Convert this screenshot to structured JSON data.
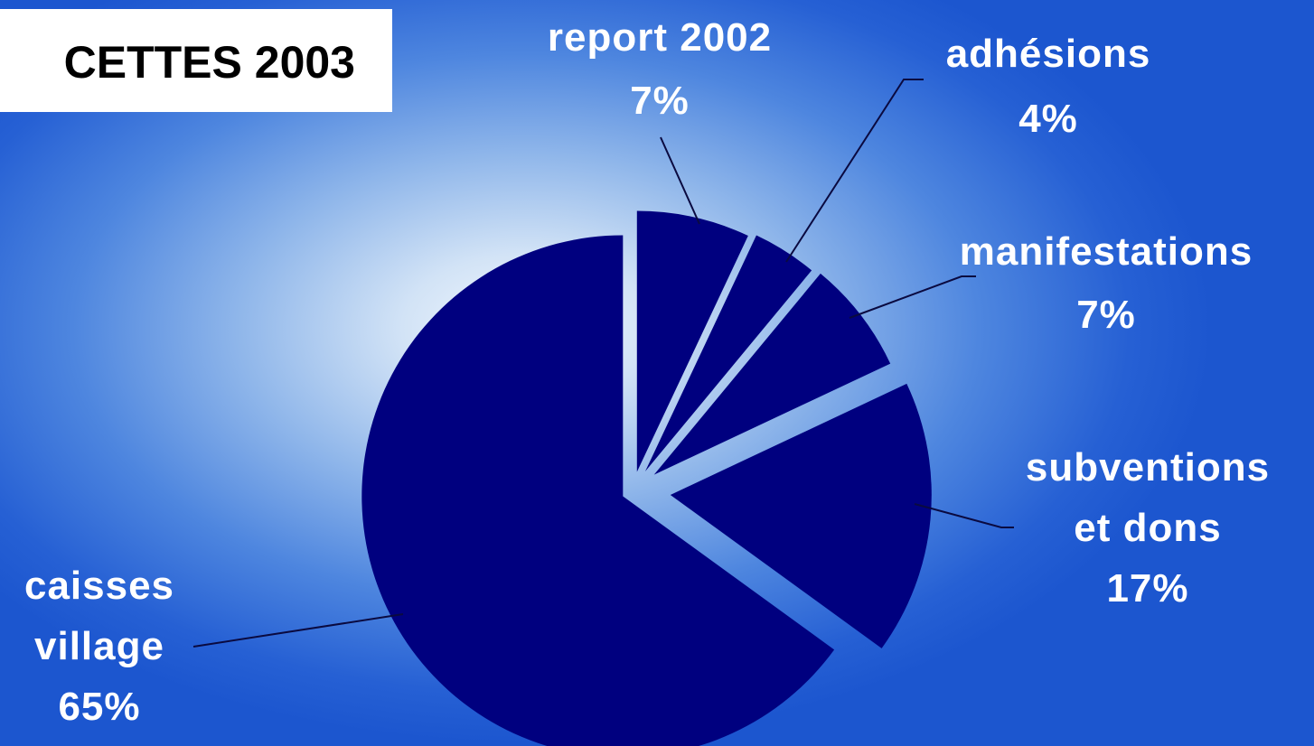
{
  "colors": {
    "slice_fill": "#00007f",
    "label_text": "#ffffff",
    "title_box": "#ffffff"
  },
  "chart_data": {
    "type": "pie",
    "title": "CETTES 2003",
    "categories": [
      "report 2002",
      "adhésions",
      "manifestations",
      "subventions et dons",
      "caisses village"
    ],
    "values": [
      7,
      4,
      7,
      17,
      65
    ],
    "unit": "%",
    "legend": "none",
    "slices": [
      {
        "category": "report 2002",
        "value": 7,
        "label_lines": [
          "report 2002",
          "7%"
        ]
      },
      {
        "category": "adhésions",
        "value": 4,
        "label_lines": [
          "adhésions",
          "4%"
        ]
      },
      {
        "category": "manifestations",
        "value": 7,
        "label_lines": [
          "manifestations",
          "7%"
        ]
      },
      {
        "category": "subventions et dons",
        "value": 17,
        "label_lines": [
          "subventions",
          "et dons",
          "17%"
        ]
      },
      {
        "category": "caisses village",
        "value": 65,
        "label_lines": [
          "caisses",
          "village",
          "65%"
        ]
      }
    ]
  }
}
